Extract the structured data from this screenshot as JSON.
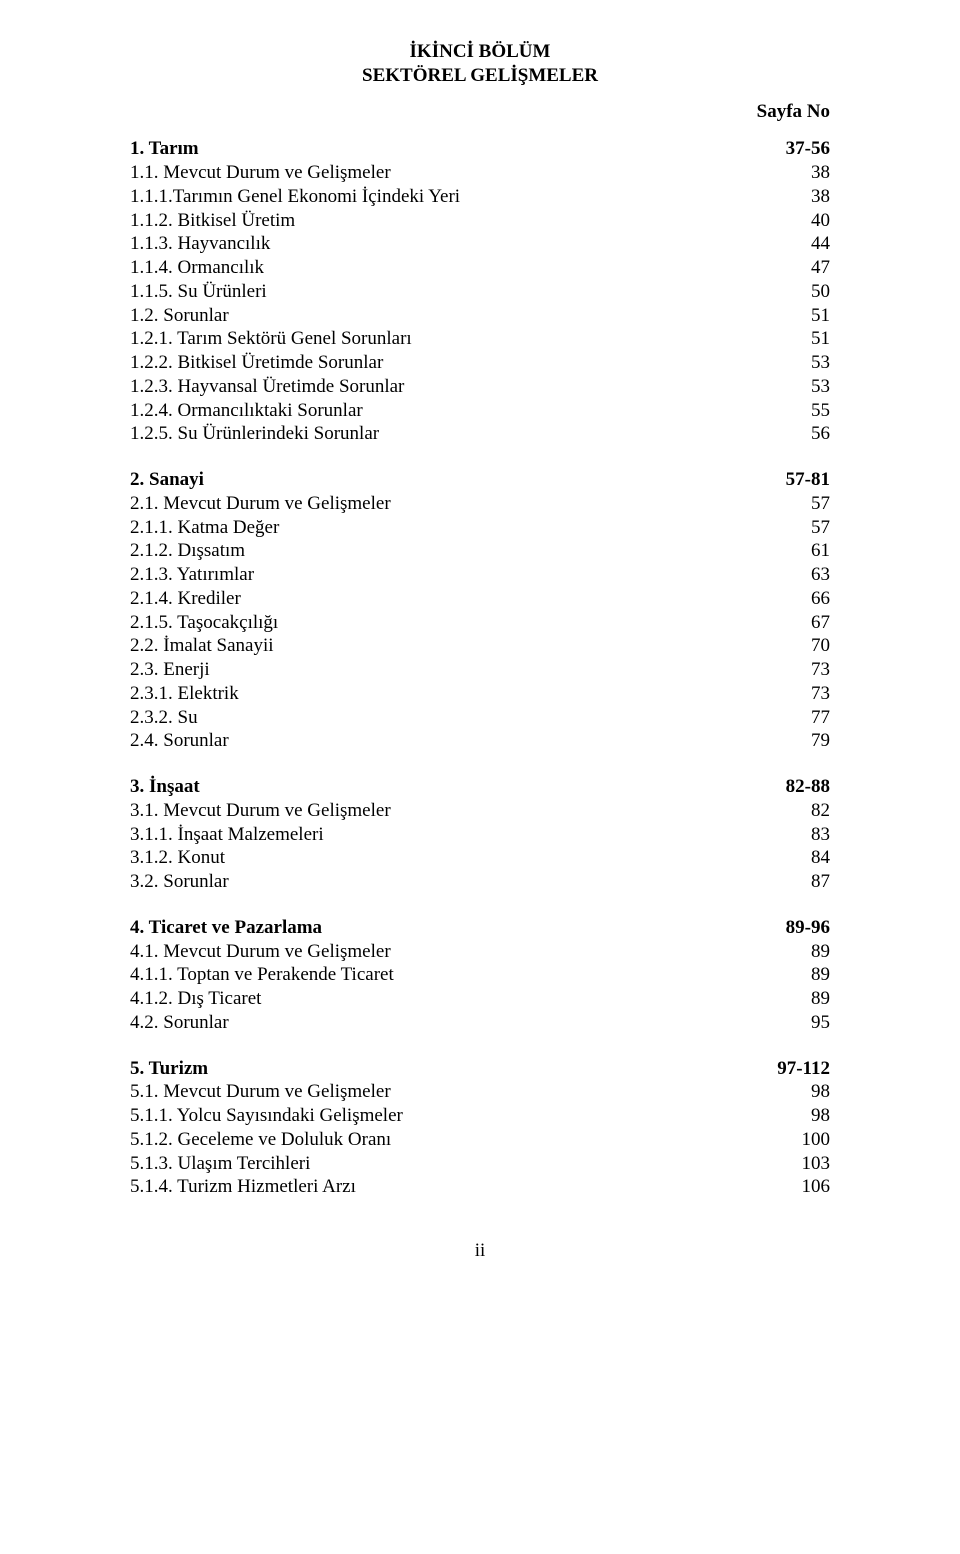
{
  "title_line1": "İKİNCİ BÖLÜM",
  "title_line2": "SEKTÖREL GELİŞMELER",
  "sayfa_no_label": "Sayfa No",
  "page_number": "ii",
  "sections": [
    {
      "heading": {
        "label": "1. Tarım",
        "page": "37-56",
        "bold": true
      },
      "items": [
        {
          "label": "1.1. Mevcut Durum ve Gelişmeler",
          "page": "38"
        },
        {
          "label": "1.1.1.Tarımın Genel Ekonomi İçindeki Yeri",
          "page": "38"
        },
        {
          "label": "1.1.2. Bitkisel Üretim",
          "page": "40"
        },
        {
          "label": "1.1.3. Hayvancılık",
          "page": "44"
        },
        {
          "label": "1.1.4. Ormancılık",
          "page": "47"
        },
        {
          "label": "1.1.5. Su Ürünleri",
          "page": "50"
        },
        {
          "label": "1.2. Sorunlar",
          "page": "51"
        },
        {
          "label": "1.2.1. Tarım Sektörü Genel Sorunları",
          "page": "51"
        },
        {
          "label": "1.2.2. Bitkisel Üretimde Sorunlar",
          "page": "53"
        },
        {
          "label": "1.2.3. Hayvansal Üretimde Sorunlar",
          "page": "53"
        },
        {
          "label": "1.2.4. Ormancılıktaki Sorunlar",
          "page": "55"
        },
        {
          "label": "1.2.5. Su Ürünlerindeki Sorunlar",
          "page": "56"
        }
      ]
    },
    {
      "heading": {
        "label": "2. Sanayi",
        "page": "57-81",
        "bold": true
      },
      "items": [
        {
          "label": "2.1. Mevcut Durum ve Gelişmeler",
          "page": "57"
        },
        {
          "label": "2.1.1. Katma Değer",
          "page": "57"
        },
        {
          "label": "2.1.2. Dışsatım",
          "page": "61"
        },
        {
          "label": "2.1.3. Yatırımlar",
          "page": "63"
        },
        {
          "label": "2.1.4.  Krediler",
          "page": "66"
        },
        {
          "label": "2.1.5. Taşocakçılığı",
          "page": "67"
        },
        {
          "label": "2.2. İmalat Sanayii",
          "page": "70"
        },
        {
          "label": "2.3. Enerji",
          "page": "73"
        },
        {
          "label": "2.3.1. Elektrik",
          "page": "73"
        },
        {
          "label": "2.3.2.  Su",
          "page": "77"
        },
        {
          "label": "2.4. Sorunlar",
          "page": "79"
        }
      ]
    },
    {
      "heading": {
        "label": "3. İnşaat",
        "page": "82-88",
        "bold": true
      },
      "items": [
        {
          "label": "3.1. Mevcut Durum ve Gelişmeler",
          "page": "82"
        },
        {
          "label": "3.1.1. İnşaat Malzemeleri",
          "page": "83"
        },
        {
          "label": "3.1.2. Konut",
          "page": "84"
        },
        {
          "label": "3.2. Sorunlar",
          "page": "87"
        }
      ]
    },
    {
      "heading": {
        "label": "4. Ticaret ve  Pazarlama",
        "page": "89-96",
        "bold": true
      },
      "items": [
        {
          "label": "4.1. Mevcut Durum ve Gelişmeler",
          "page": "89"
        },
        {
          "label": "4.1.1. Toptan ve Perakende Ticaret",
          "page": "89"
        },
        {
          "label": "4.1.2. Dış Ticaret",
          "page": "89"
        },
        {
          "label": "4.2. Sorunlar",
          "page": "95"
        }
      ]
    },
    {
      "heading": {
        "label": "5. Turizm",
        "page": "97-112",
        "bold": true
      },
      "items": [
        {
          "label": "5.1. Mevcut Durum ve Gelişmeler",
          "page": "98"
        },
        {
          "label": "5.1.1. Yolcu Sayısındaki Gelişmeler",
          "page": "98"
        },
        {
          "label": "5.1.2. Geceleme ve Doluluk Oranı",
          "page": "100"
        },
        {
          "label": "5.1.3. Ulaşım Tercihleri",
          "page": "103"
        },
        {
          "label": "5.1.4. Turizm Hizmetleri Arzı",
          "page": "106"
        }
      ]
    }
  ]
}
